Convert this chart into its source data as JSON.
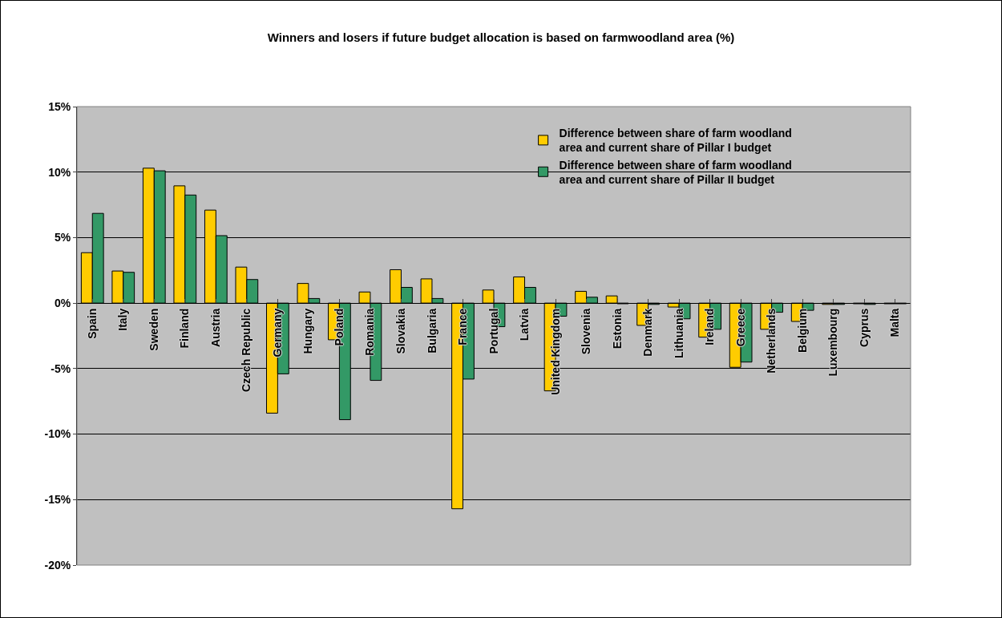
{
  "chart_data": {
    "type": "bar",
    "title": "Winners and losers if future budget allocation is based on farmwoodland area (%)",
    "categories": [
      "Spain",
      "Italy",
      "Sweden",
      "Finland",
      "Austria",
      "Czech Republic",
      "Germany",
      "Hungary",
      "Poland",
      "Romania",
      "Slovakia",
      "Bulgaria",
      "France",
      "Portugal",
      "Latvia",
      "United Kingdom",
      "Slovenia",
      "Estonia",
      "Denmark",
      "Lithuania",
      "Ireland",
      "Greece",
      "Netherlands",
      "Belgium",
      "Luxembourg",
      "Cyprus",
      "Malta"
    ],
    "series": [
      {
        "name": "Difference between share of farm woodland area and current share of Pillar I budget",
        "color": "#ffcc00",
        "values": [
          3.85,
          2.45,
          10.3,
          8.95,
          7.1,
          2.75,
          -8.4,
          1.5,
          -2.8,
          0.85,
          2.55,
          1.85,
          -15.7,
          1.0,
          2.0,
          -6.7,
          0.9,
          0.55,
          -1.7,
          -0.3,
          -2.6,
          -4.9,
          -2.0,
          -1.4,
          -0.1,
          -0.05,
          -0.05
        ]
      },
      {
        "name": "Difference between share of farm woodland area and current share of Pillar II budget",
        "color": "#339966",
        "values": [
          6.85,
          2.35,
          10.1,
          8.25,
          5.15,
          1.8,
          -5.4,
          0.35,
          -8.9,
          -5.9,
          1.2,
          0.35,
          -5.8,
          -1.8,
          1.2,
          -1.0,
          0.45,
          -0.05,
          -0.1,
          -1.2,
          -2.0,
          -4.5,
          -0.7,
          -0.55,
          -0.1,
          -0.1,
          -0.05
        ]
      }
    ],
    "ylim": [
      -20,
      15
    ],
    "yticks": [
      {
        "value": -20,
        "label": "-20%"
      },
      {
        "value": -15,
        "label": "-15%"
      },
      {
        "value": -10,
        "label": "-10%"
      },
      {
        "value": -5,
        "label": "-5%"
      },
      {
        "value": 0,
        "label": "0%"
      },
      {
        "value": 5,
        "label": "5%"
      },
      {
        "value": 10,
        "label": "10%"
      },
      {
        "value": 15,
        "label": "15%"
      }
    ],
    "grid": "y",
    "legend": "top right"
  }
}
